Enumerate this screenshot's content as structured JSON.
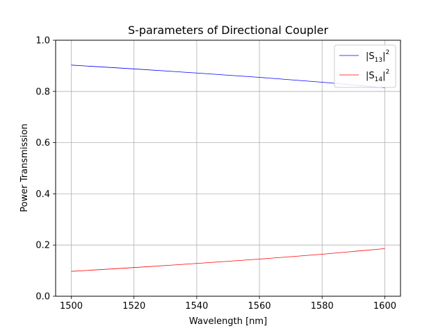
{
  "chart_data": {
    "type": "line",
    "title": "S-parameters of Directional Coupler",
    "xlabel": "Wavelength [nm]",
    "ylabel": "Power Transmission",
    "xlim": [
      1495,
      1605
    ],
    "ylim": [
      0.0,
      1.0
    ],
    "xticks": [
      1500,
      1520,
      1540,
      1560,
      1580,
      1600
    ],
    "yticks": [
      0.0,
      0.2,
      0.4,
      0.6,
      0.8,
      1.0
    ],
    "xtick_labels": [
      "1500",
      "1520",
      "1540",
      "1560",
      "1580",
      "1600"
    ],
    "ytick_labels": [
      "0.0",
      "0.2",
      "0.4",
      "0.6",
      "0.8",
      "1.0"
    ],
    "grid": true,
    "legend_position": "top-right",
    "x": [
      1500,
      1520,
      1540,
      1560,
      1580,
      1600
    ],
    "series": [
      {
        "name": "|S13|²",
        "legend_main": "|S",
        "legend_sub": "13",
        "legend_tail": "|",
        "legend_sup": "2",
        "color": "#0000ff",
        "values": [
          0.903,
          0.888,
          0.872,
          0.855,
          0.836,
          0.814
        ]
      },
      {
        "name": "|S14|²",
        "legend_main": "|S",
        "legend_sub": "14",
        "legend_tail": "|",
        "legend_sup": "2",
        "color": "#ff0000",
        "values": [
          0.097,
          0.112,
          0.128,
          0.145,
          0.164,
          0.186
        ]
      }
    ]
  }
}
